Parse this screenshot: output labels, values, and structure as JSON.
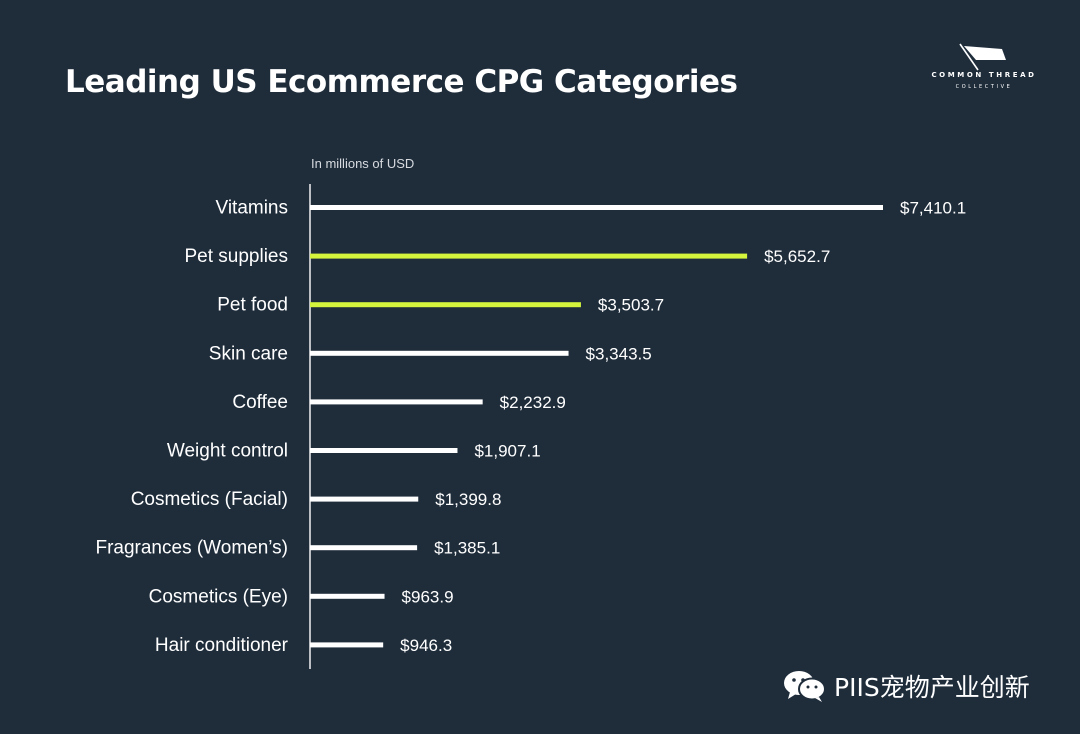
{
  "header": {
    "title": "Leading US Ecommerce CPG Categories",
    "logo_top": "COMMON THREAD",
    "logo_bottom": "COLLECTIVE"
  },
  "unit_label": "In millions of USD",
  "watermark": "PIIS宠物产业创新",
  "colors": {
    "background": "#1f2d3b",
    "bar_default": "#ffffff",
    "bar_highlight": "#d4f53c",
    "text": "#ffffff"
  },
  "chart_data": {
    "type": "bar",
    "orientation": "horizontal",
    "title": "Leading US Ecommerce CPG Categories",
    "subtitle": "In millions of USD",
    "categories": [
      "Vitamins",
      "Pet supplies",
      "Pet food",
      "Skin care",
      "Coffee",
      "Weight control",
      "Cosmetics (Facial)",
      "Fragrances (Women’s)",
      "Cosmetics (Eye)",
      "Hair conditioner"
    ],
    "values": [
      7410.1,
      5652.7,
      3503.7,
      3343.5,
      2232.9,
      1907.1,
      1399.8,
      1385.1,
      963.9,
      946.3
    ],
    "value_labels": [
      "$7,410.1",
      "$5,652.7",
      "$3,503.7",
      "$3,343.5",
      "$2,232.9",
      "$1,907.1",
      "$1,399.8",
      "$1,385.1",
      "$963.9",
      "$946.3"
    ],
    "highlighted": [
      "Pet supplies",
      "Pet food"
    ],
    "xlim": [
      0,
      7410.1
    ],
    "grid": false,
    "legend": "none"
  }
}
